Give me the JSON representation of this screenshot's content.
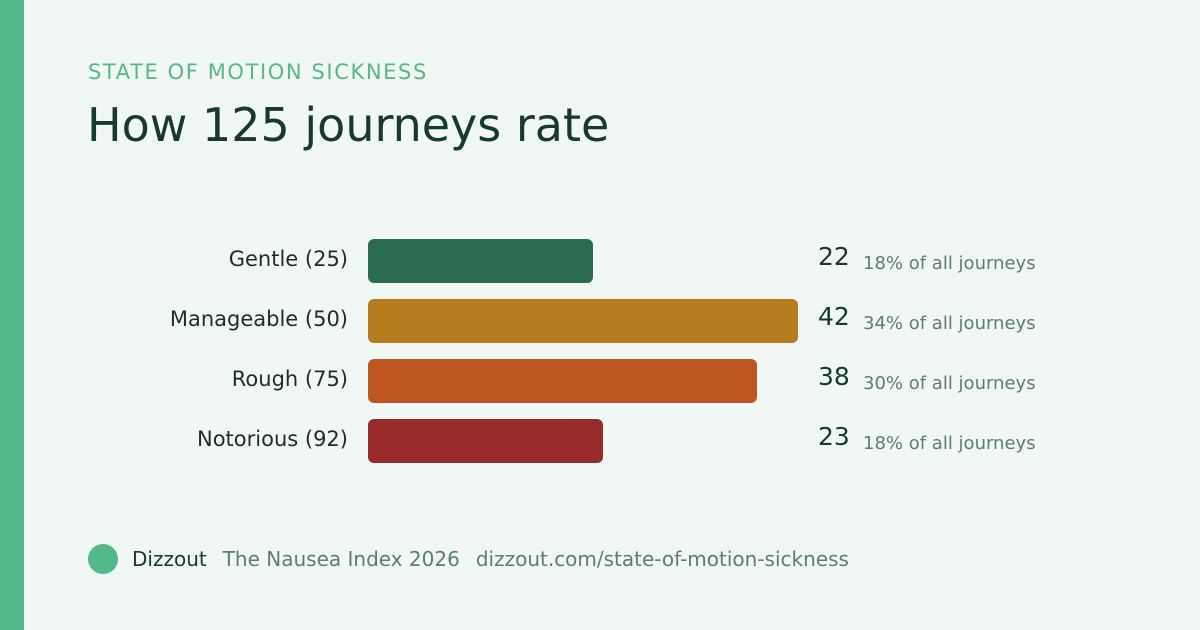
{
  "header": {
    "eyebrow": "STATE OF MOTION SICKNESS",
    "title": "How 125 journeys rate"
  },
  "colors": {
    "accent": "#52b98a",
    "background": "#f1f7f4",
    "title": "#163a2c",
    "muted": "#5b7f70"
  },
  "chart_data": {
    "type": "bar",
    "orientation": "horizontal",
    "title": "How 125 journeys rate",
    "categories": [
      "Gentle (25)",
      "Manageable (50)",
      "Rough (75)",
      "Notorious (92)"
    ],
    "values": [
      22,
      42,
      38,
      23
    ],
    "data_labels": [
      "22",
      "42",
      "38",
      "23"
    ],
    "share_labels": [
      "18% of all journeys",
      "34% of all journeys",
      "30% of all journeys",
      "18% of all journeys"
    ],
    "colors": [
      "#2c6b50",
      "#b77b20",
      "#bf5622",
      "#992a2b"
    ],
    "xlim": [
      0,
      42
    ],
    "grid": false,
    "legend": "none"
  },
  "footer": {
    "brand": "Dizzout",
    "report": "The Nausea Index 2026",
    "url": "dizzout.com/state-of-motion-sickness"
  }
}
